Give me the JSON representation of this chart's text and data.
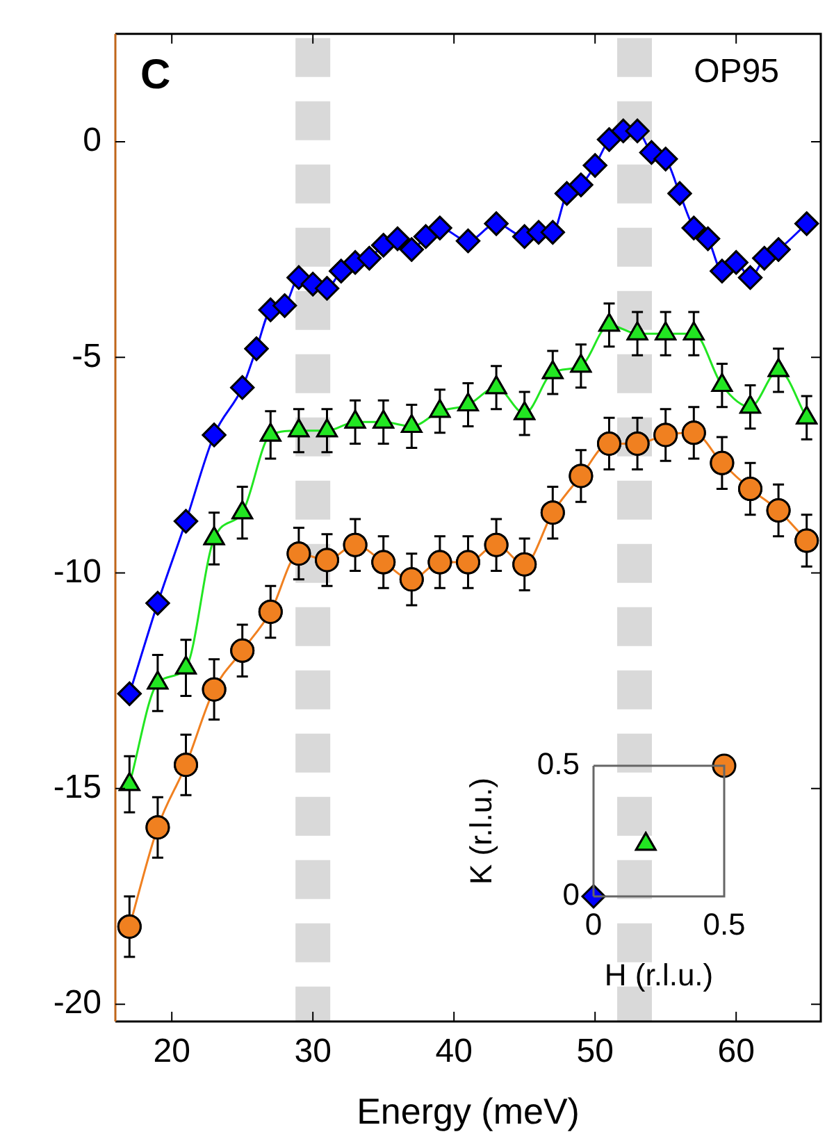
{
  "chart_data": [
    {
      "type": "line",
      "xlabel": "Energy (meV)",
      "annotations": [
        "C",
        "OP95"
      ],
      "xlim": [
        16,
        66
      ],
      "xticks": [
        20,
        30,
        40,
        50,
        60
      ],
      "ylim": [
        -20.4,
        2.5
      ],
      "yticks": [
        -20,
        -15,
        -10,
        -5,
        0
      ],
      "grid": false,
      "legend": false,
      "line_style": "solid",
      "ref_lines": [
        {
          "axis": "x",
          "value": 30,
          "color": "#d9d9d9",
          "line_style": "dashed"
        },
        {
          "axis": "x",
          "value": 52.8,
          "color": "#d9d9d9",
          "line_style": "dashed"
        }
      ],
      "series": [
        {
          "color": "#0000ff",
          "marker": "diamond",
          "x": [
            17,
            19,
            21,
            23,
            25,
            26,
            27,
            28,
            29,
            30,
            31,
            32,
            33,
            34,
            35,
            36,
            37,
            38,
            39,
            41,
            43,
            45,
            46,
            47,
            48,
            49,
            50,
            51,
            52,
            53,
            54,
            55,
            56,
            57,
            58,
            59,
            60,
            61,
            62,
            63,
            65
          ],
          "values": [
            -12.8,
            -10.7,
            -8.8,
            -6.8,
            -5.7,
            -4.8,
            -3.9,
            -3.8,
            -3.15,
            -3.3,
            -3.4,
            -3.0,
            -2.8,
            -2.7,
            -2.4,
            -2.25,
            -2.5,
            -2.2,
            -2.0,
            -2.3,
            -1.9,
            -2.2,
            -2.1,
            -2.1,
            -1.2,
            -1.0,
            -0.55,
            0.05,
            0.25,
            0.25,
            -0.25,
            -0.4,
            -1.2,
            -2.0,
            -2.25,
            -3.0,
            -2.8,
            -3.15,
            -2.7,
            -2.5,
            -1.9
          ]
        },
        {
          "color": "#22e622",
          "marker": "triangle",
          "x": [
            17,
            19,
            21,
            23,
            25,
            27,
            29,
            31,
            33,
            35,
            37,
            39,
            41,
            43,
            45,
            47,
            49,
            51,
            53,
            55,
            57,
            59,
            61,
            63,
            65
          ],
          "values": [
            -14.9,
            -12.55,
            -12.2,
            -9.2,
            -8.6,
            -6.8,
            -6.7,
            -6.7,
            -6.5,
            -6.5,
            -6.6,
            -6.25,
            -6.1,
            -5.7,
            -6.3,
            -5.35,
            -5.2,
            -4.25,
            -4.45,
            -4.45,
            -4.45,
            -5.65,
            -6.15,
            -5.3,
            -6.4
          ],
          "errors": [
            0.65,
            0.65,
            0.65,
            0.6,
            0.6,
            0.55,
            0.5,
            0.5,
            0.5,
            0.5,
            0.5,
            0.5,
            0.5,
            0.5,
            0.5,
            0.5,
            0.5,
            0.5,
            0.5,
            0.5,
            0.5,
            0.5,
            0.5,
            0.5,
            0.5
          ]
        },
        {
          "color": "#f08020",
          "marker": "circle",
          "x": [
            17,
            19,
            21,
            23,
            25,
            27,
            29,
            31,
            33,
            35,
            37,
            39,
            41,
            43,
            45,
            47,
            49,
            51,
            53,
            55,
            57,
            59,
            61,
            63,
            65
          ],
          "values": [
            -18.2,
            -15.9,
            -14.45,
            -12.7,
            -11.8,
            -10.9,
            -9.55,
            -9.7,
            -9.35,
            -9.75,
            -10.15,
            -9.75,
            -9.75,
            -9.35,
            -9.8,
            -8.6,
            -7.75,
            -7.0,
            -7.0,
            -6.8,
            -6.75,
            -7.45,
            -8.05,
            -8.55,
            -9.25
          ],
          "errors": [
            0.7,
            0.7,
            0.7,
            0.7,
            0.6,
            0.6,
            0.6,
            0.6,
            0.6,
            0.6,
            0.6,
            0.6,
            0.6,
            0.6,
            0.6,
            0.6,
            0.6,
            0.6,
            0.6,
            0.6,
            0.6,
            0.6,
            0.6,
            0.6,
            0.6
          ]
        }
      ]
    },
    {
      "type": "scatter",
      "xlabel": "H (r.l.u.)",
      "ylabel": "K (r.l.u.)",
      "xlim": [
        0,
        0.5
      ],
      "xticks": [
        0,
        0.5
      ],
      "ylim": [
        0,
        0.5
      ],
      "yticks": [
        0,
        0.5
      ],
      "grid": false,
      "legend": false,
      "series": [
        {
          "color": "#0000ff",
          "marker": "diamond",
          "x": [
            0
          ],
          "values": [
            0
          ]
        },
        {
          "color": "#22e622",
          "marker": "triangle",
          "x": [
            0.2
          ],
          "values": [
            0.2
          ]
        },
        {
          "color": "#f08020",
          "marker": "circle",
          "x": [
            0.5
          ],
          "values": [
            0.5
          ]
        }
      ]
    }
  ]
}
